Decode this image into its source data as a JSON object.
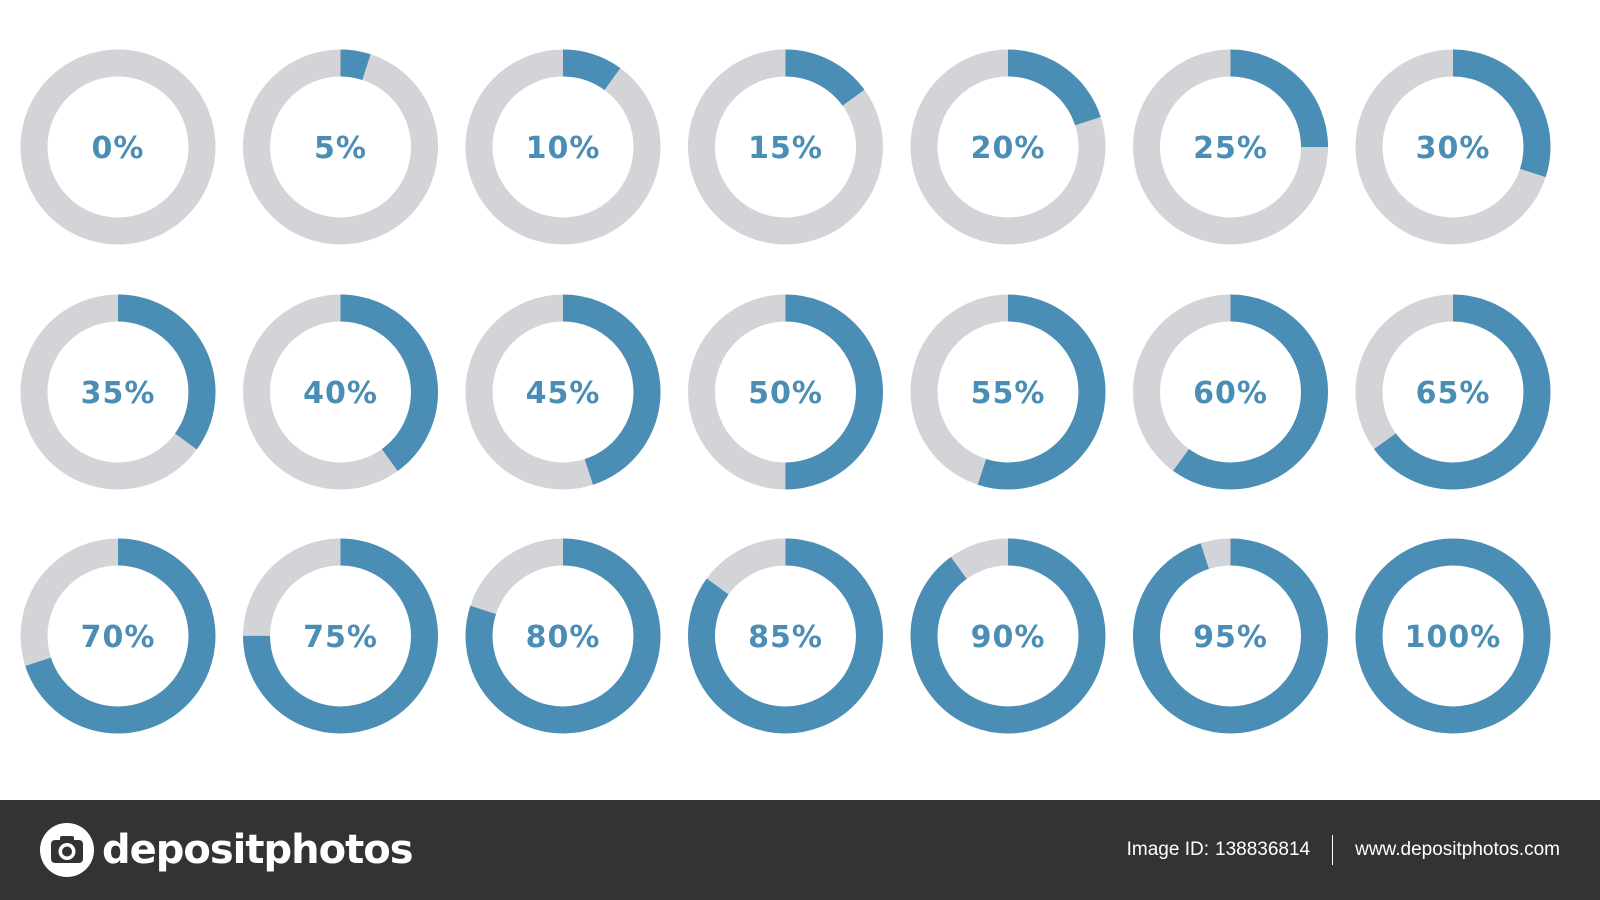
{
  "colors": {
    "fill": "#4a8db5",
    "track": "#d3d4d8",
    "label": "#4a8db5",
    "background": "#ffffff",
    "footer_background": "#333333",
    "footer_text": "#ffffff"
  },
  "rings": [
    {
      "label": "0%",
      "value": 0
    },
    {
      "label": "5%",
      "value": 5
    },
    {
      "label": "10%",
      "value": 10
    },
    {
      "label": "15%",
      "value": 15
    },
    {
      "label": "20%",
      "value": 20
    },
    {
      "label": "25%",
      "value": 25
    },
    {
      "label": "30%",
      "value": 30
    },
    {
      "label": "35%",
      "value": 35
    },
    {
      "label": "40%",
      "value": 40
    },
    {
      "label": "45%",
      "value": 45
    },
    {
      "label": "50%",
      "value": 50
    },
    {
      "label": "55%",
      "value": 55
    },
    {
      "label": "60%",
      "value": 60
    },
    {
      "label": "65%",
      "value": 65
    },
    {
      "label": "70%",
      "value": 70
    },
    {
      "label": "75%",
      "value": 75
    },
    {
      "label": "80%",
      "value": 80
    },
    {
      "label": "85%",
      "value": 85
    },
    {
      "label": "90%",
      "value": 90
    },
    {
      "label": "95%",
      "value": 95
    },
    {
      "label": "100%",
      "value": 100
    }
  ],
  "footer": {
    "logo_icon": "camera-icon",
    "logo_text": "depositphotos",
    "image_id_label": "Image ID:",
    "image_id": "138836814",
    "website": "www.depositphotos.com"
  }
}
